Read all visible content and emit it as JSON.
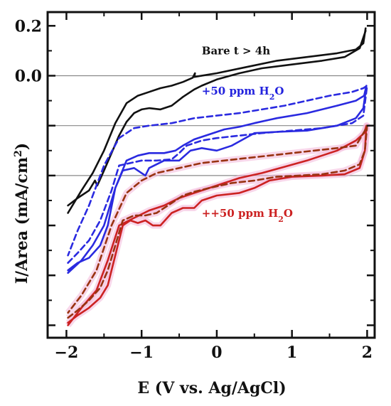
{
  "chart_data": {
    "type": "line",
    "title": "",
    "xlabel": "E (V vs. Ag/AgCl)",
    "ylabel_main": "I/Area (mA/cm",
    "ylabel_sup": "2",
    "ylabel_tail": ")",
    "xlim": [
      -2.25,
      2.1
    ],
    "ylim": [
      -1.05,
      0.255
    ],
    "x_ticks": [
      -2,
      -1,
      0,
      1,
      2
    ],
    "x_tick_labels": [
      "−2",
      "−1",
      "0",
      "1",
      "2"
    ],
    "y_ticks": [
      -1.0,
      -0.8,
      -0.6,
      -0.4,
      -0.2,
      0.0,
      0.2
    ],
    "y_tick_labels": [
      "",
      "",
      "",
      "",
      "",
      "0.0",
      "0.2"
    ],
    "reference_lines": [
      0.0,
      -0.2,
      -0.4
    ],
    "grid": false,
    "legend": "none",
    "annotations": [
      {
        "id": "bare",
        "text": "Bare t > 4h",
        "x": -0.2,
        "y": 0.085,
        "color": "#111111"
      },
      {
        "id": "plus50",
        "text_main": "+50 ppm H",
        "text_sub": "2",
        "text_tail": "O",
        "x": -0.2,
        "y": -0.075,
        "color": "#2222dd"
      },
      {
        "id": "plusplus50",
        "text_main": "++50 ppm H",
        "text_sub": "2",
        "text_tail": "O",
        "x": -0.2,
        "y": -0.565,
        "color": "#cc2222"
      }
    ],
    "series": [
      {
        "id": "bare_forward",
        "color": "#111111",
        "dash": false,
        "band": false,
        "x": [
          -1.98,
          -1.85,
          -1.7,
          -1.62,
          -1.59,
          -1.56,
          -1.5,
          -1.4,
          -1.3,
          -1.2,
          -1.1,
          -1.0,
          -0.9,
          -0.75,
          -0.6,
          -0.45,
          -0.3,
          -0.2,
          0.0,
          0.3,
          0.6,
          1.0,
          1.4,
          1.7,
          1.9,
          1.98
        ],
        "y": [
          -0.52,
          -0.49,
          -0.46,
          -0.42,
          -0.44,
          -0.42,
          -0.38,
          -0.31,
          -0.24,
          -0.185,
          -0.15,
          -0.135,
          -0.13,
          -0.135,
          -0.12,
          -0.085,
          -0.055,
          -0.04,
          -0.015,
          0.01,
          0.03,
          0.045,
          0.06,
          0.075,
          0.11,
          0.18
        ]
      },
      {
        "id": "bare_reverse",
        "color": "#111111",
        "dash": false,
        "band": false,
        "x": [
          1.98,
          1.95,
          1.85,
          1.6,
          1.2,
          0.8,
          0.4,
          0.0,
          -0.3,
          -0.29,
          -0.32,
          -0.45,
          -0.6,
          -0.75,
          -0.9,
          -1.05,
          -1.2,
          -1.35,
          -1.5,
          -1.65,
          -1.8,
          -1.98
        ],
        "y": [
          0.19,
          0.13,
          0.105,
          0.09,
          0.075,
          0.06,
          0.035,
          0.01,
          -0.005,
          0.01,
          -0.008,
          -0.025,
          -0.04,
          -0.05,
          -0.065,
          -0.08,
          -0.11,
          -0.19,
          -0.3,
          -0.39,
          -0.46,
          -0.55
        ]
      },
      {
        "id": "h2o_solid",
        "color": "#2a2ae0",
        "dash": false,
        "band": false,
        "x": [
          -1.98,
          -1.85,
          -1.7,
          -1.55,
          -1.45,
          -1.35,
          -1.25,
          -1.1,
          -1.0,
          -0.95,
          -0.9,
          -0.7,
          -0.5,
          -0.35,
          -0.2,
          0.0,
          0.2,
          0.5,
          0.8,
          1.2,
          1.6,
          1.85,
          1.95,
          1.99,
          1.96,
          1.85,
          1.6,
          1.2,
          0.8,
          0.5,
          0.3,
          0.1,
          -0.1,
          -0.3,
          -0.45,
          -0.55,
          -0.7,
          -0.9,
          -1.05,
          -1.2,
          -1.35,
          -1.5,
          -1.65,
          -1.8,
          -1.98
        ],
        "y": [
          -0.78,
          -0.75,
          -0.73,
          -0.68,
          -0.6,
          -0.45,
          -0.38,
          -0.37,
          -0.39,
          -0.4,
          -0.37,
          -0.34,
          -0.34,
          -0.3,
          -0.29,
          -0.3,
          -0.28,
          -0.23,
          -0.225,
          -0.22,
          -0.2,
          -0.17,
          -0.13,
          -0.04,
          -0.08,
          -0.1,
          -0.12,
          -0.15,
          -0.17,
          -0.19,
          -0.205,
          -0.215,
          -0.235,
          -0.255,
          -0.28,
          -0.3,
          -0.31,
          -0.31,
          -0.32,
          -0.34,
          -0.45,
          -0.6,
          -0.68,
          -0.74,
          -0.79
        ]
      },
      {
        "id": "h2o_dashed",
        "color": "#2a2ae0",
        "dash": true,
        "band": false,
        "x": [
          -1.98,
          -1.85,
          -1.7,
          -1.55,
          -1.4,
          -1.3,
          -1.15,
          -1.0,
          -0.8,
          -0.6,
          -0.5,
          -0.4,
          -0.2,
          0.0,
          0.3,
          0.6,
          1.0,
          1.4,
          1.8,
          1.95,
          2.0,
          1.95,
          1.8,
          1.5,
          1.2,
          0.9,
          0.6,
          0.3,
          0.0,
          -0.3,
          -0.6,
          -0.9,
          -1.1,
          -1.3,
          -1.5,
          -1.7,
          -1.85,
          -1.98
        ],
        "y": [
          -0.75,
          -0.71,
          -0.66,
          -0.58,
          -0.46,
          -0.36,
          -0.35,
          -0.34,
          -0.34,
          -0.335,
          -0.31,
          -0.28,
          -0.26,
          -0.25,
          -0.24,
          -0.23,
          -0.22,
          -0.21,
          -0.19,
          -0.16,
          -0.04,
          -0.05,
          -0.065,
          -0.08,
          -0.1,
          -0.12,
          -0.135,
          -0.15,
          -0.16,
          -0.17,
          -0.19,
          -0.2,
          -0.21,
          -0.25,
          -0.36,
          -0.52,
          -0.62,
          -0.72
        ]
      },
      {
        "id": "hh2o_solid",
        "color": "#cc2222",
        "dash": false,
        "band": true,
        "x": [
          -1.98,
          -1.85,
          -1.7,
          -1.55,
          -1.45,
          -1.35,
          -1.25,
          -1.15,
          -1.05,
          -0.95,
          -0.85,
          -0.75,
          -0.6,
          -0.45,
          -0.3,
          -0.2,
          0.0,
          0.3,
          0.5,
          0.7,
          1.0,
          1.4,
          1.7,
          1.9,
          1.97,
          1.99,
          1.96,
          1.85,
          1.6,
          1.2,
          0.9,
          0.6,
          0.3,
          0.1,
          -0.1,
          -0.3,
          -0.5,
          -0.7,
          -0.9,
          -1.1,
          -1.3,
          -1.45,
          -1.6,
          -1.8,
          -1.98
        ],
        "y": [
          -0.99,
          -0.96,
          -0.93,
          -0.89,
          -0.84,
          -0.72,
          -0.6,
          -0.58,
          -0.59,
          -0.58,
          -0.6,
          -0.6,
          -0.55,
          -0.53,
          -0.53,
          -0.5,
          -0.48,
          -0.47,
          -0.45,
          -0.42,
          -0.405,
          -0.4,
          -0.395,
          -0.37,
          -0.3,
          -0.2,
          -0.23,
          -0.26,
          -0.3,
          -0.34,
          -0.365,
          -0.39,
          -0.41,
          -0.43,
          -0.45,
          -0.47,
          -0.49,
          -0.52,
          -0.54,
          -0.57,
          -0.6,
          -0.74,
          -0.86,
          -0.93,
          -1.0
        ]
      },
      {
        "id": "hh2o_dashed",
        "color": "#993311",
        "dash": true,
        "band": true,
        "x": [
          -1.98,
          -1.85,
          -1.7,
          -1.55,
          -1.45,
          -1.35,
          -1.25,
          -1.1,
          -0.95,
          -0.8,
          -0.65,
          -0.55,
          -0.45,
          -0.3,
          -0.1,
          0.2,
          0.5,
          0.8,
          1.1,
          1.4,
          1.7,
          1.9,
          1.97,
          2.0,
          1.97,
          1.85,
          1.6,
          1.3,
          1.0,
          0.7,
          0.4,
          0.1,
          -0.2,
          -0.5,
          -0.8,
          -1.0,
          -1.2,
          -1.4,
          -1.6,
          -1.8,
          -1.98
        ],
        "y": [
          -0.97,
          -0.94,
          -0.9,
          -0.85,
          -0.78,
          -0.68,
          -0.58,
          -0.56,
          -0.56,
          -0.55,
          -0.52,
          -0.5,
          -0.48,
          -0.465,
          -0.45,
          -0.43,
          -0.42,
          -0.405,
          -0.4,
          -0.395,
          -0.38,
          -0.355,
          -0.3,
          -0.2,
          -0.22,
          -0.28,
          -0.29,
          -0.3,
          -0.31,
          -0.32,
          -0.33,
          -0.34,
          -0.35,
          -0.37,
          -0.39,
          -0.42,
          -0.47,
          -0.6,
          -0.78,
          -0.88,
          -0.95
        ]
      }
    ]
  }
}
